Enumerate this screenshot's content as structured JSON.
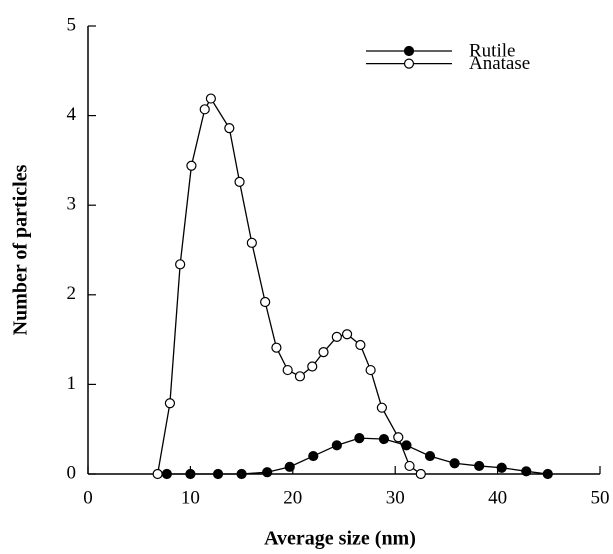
{
  "chart_data": {
    "type": "line",
    "x_label": "Average size (nm)",
    "y_label": "Number of particles",
    "xlim": [
      0,
      50
    ],
    "ylim": [
      0,
      5
    ],
    "xticks": [
      0,
      10,
      20,
      30,
      40,
      50
    ],
    "yticks": [
      0,
      1,
      2,
      3,
      4,
      5
    ],
    "legend": "upper right",
    "series": [
      {
        "name": "Rutile",
        "marker": "filled",
        "x": [
          7.7,
          10.0,
          12.7,
          15.0,
          17.5,
          19.7,
          22.0,
          24.3,
          26.5,
          28.9,
          31.1,
          33.4,
          35.8,
          38.2,
          40.4,
          42.8,
          44.9
        ],
        "values": [
          0,
          0,
          0,
          0,
          0.02,
          0.08,
          0.2,
          0.32,
          0.4,
          0.39,
          0.32,
          0.2,
          0.12,
          0.09,
          0.07,
          0.03,
          0
        ]
      },
      {
        "name": "Anatase",
        "marker": "open",
        "x": [
          6.8,
          8.0,
          9.0,
          10.1,
          11.4,
          12.0,
          13.8,
          14.8,
          16.0,
          17.3,
          18.4,
          19.5,
          20.7,
          21.9,
          23.0,
          24.3,
          25.3,
          26.6,
          27.6,
          28.7,
          30.3,
          31.4,
          32.5
        ],
        "values": [
          0,
          0.79,
          2.34,
          3.44,
          4.07,
          4.19,
          3.86,
          3.26,
          2.58,
          1.92,
          1.41,
          1.16,
          1.09,
          1.2,
          1.36,
          1.53,
          1.56,
          1.44,
          1.16,
          0.74,
          0.41,
          0.09,
          0
        ]
      }
    ]
  }
}
